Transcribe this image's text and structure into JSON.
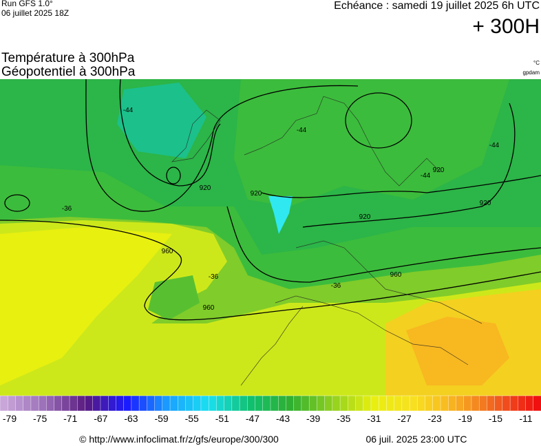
{
  "header": {
    "run": "Run GFS 1.0°",
    "run_date": "06 juillet 2025 18Z",
    "valid": "Echéance : samedi 19 juillet 2025 6h UTC",
    "lead": "+ 300H",
    "title1": "Température à 300hPa",
    "title2": "Géopotentiel à 300hPa",
    "unit1": "°C",
    "unit2": "gpdam"
  },
  "map": {
    "contour_labels": [
      "920",
      "920",
      "920",
      "920",
      "920",
      "960",
      "960",
      "960",
      "-44",
      "-44",
      "-44",
      "-44",
      "-36",
      "-36",
      "-36"
    ]
  },
  "colorbar": {
    "labels": [
      "-79",
      "-75",
      "-71",
      "-67",
      "-63",
      "-59",
      "-55",
      "-51",
      "-47",
      "-43",
      "-39",
      "-35",
      "-31",
      "-27",
      "-23",
      "-19",
      "-15",
      "-11"
    ],
    "stops": [
      "#c9a6d9",
      "#9a6fb8",
      "#5a1a80",
      "#1a1aff",
      "#1aa0ff",
      "#1ae0f0",
      "#10c070",
      "#30b030",
      "#8fd020",
      "#e8f010",
      "#f8e020",
      "#f8b020",
      "#f06020",
      "#f01010"
    ]
  },
  "footer": {
    "url": "© http://www.infoclimat.fr/z/gfs/europe/300/300",
    "generated": "06 juil. 2025 23:00 UTC"
  }
}
